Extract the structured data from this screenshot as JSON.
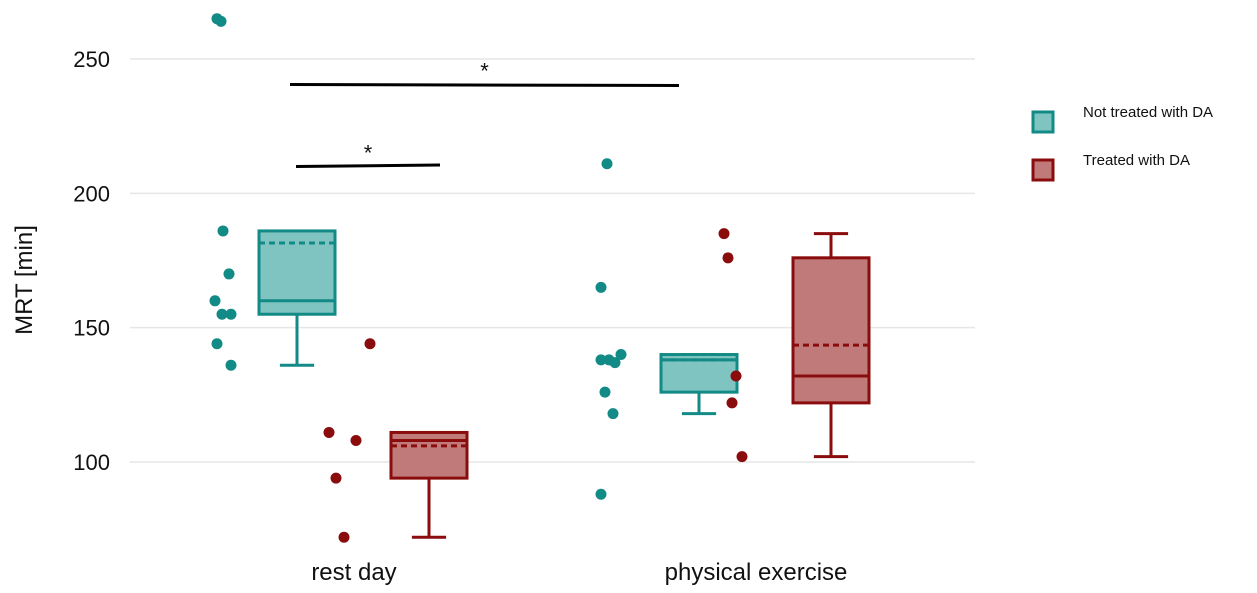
{
  "chart_data": {
    "type": "box",
    "title": "",
    "xlabel": "",
    "ylabel": "MRT [min]",
    "ylim": [
      68,
      268
    ],
    "yticks": [
      100,
      150,
      200,
      250
    ],
    "grid": "horizontal",
    "legend_position": "right",
    "categories": [
      "rest day",
      "physical exercise"
    ],
    "series": [
      {
        "name": "Not treated with DA",
        "color": "#128a86",
        "fill": "#80c4c1",
        "boxes": [
          {
            "category": "rest day",
            "whisker_low": 136,
            "q1": 155,
            "median": 160,
            "q3": 186,
            "whisker_high": 186,
            "mean": 181.5,
            "points": [
              265,
              264,
              186,
              170,
              160,
              155,
              155,
              144,
              136
            ]
          },
          {
            "category": "physical exercise",
            "whisker_low": 118,
            "q1": 126,
            "median": 138,
            "q3": 140,
            "whisker_high": 140,
            "mean": 138,
            "points": [
              211,
              165,
              140,
              138,
              138,
              137,
              126,
              118,
              88
            ]
          }
        ]
      },
      {
        "name": "Treated with DA",
        "color": "#8b0c0c",
        "fill": "#c17a7a",
        "boxes": [
          {
            "category": "rest day",
            "whisker_low": 72,
            "q1": 94,
            "median": 108,
            "q3": 111,
            "whisker_high": 111,
            "mean": 106,
            "points": [
              144,
              111,
              108,
              94,
              72
            ]
          },
          {
            "category": "physical exercise",
            "whisker_low": 102,
            "q1": 122,
            "median": 132,
            "q3": 176,
            "whisker_high": 185,
            "mean": 143.5,
            "points": [
              185,
              176,
              132,
              122,
              102
            ]
          }
        ]
      }
    ],
    "annotations": [
      {
        "text": "*",
        "from": "rest day / Not treated with DA",
        "to": "rest day / Treated with DA",
        "y": 210
      },
      {
        "text": "*",
        "from": "rest day / Not treated with DA",
        "to": "physical exercise / Not treated with DA",
        "y": 240.5
      }
    ]
  }
}
